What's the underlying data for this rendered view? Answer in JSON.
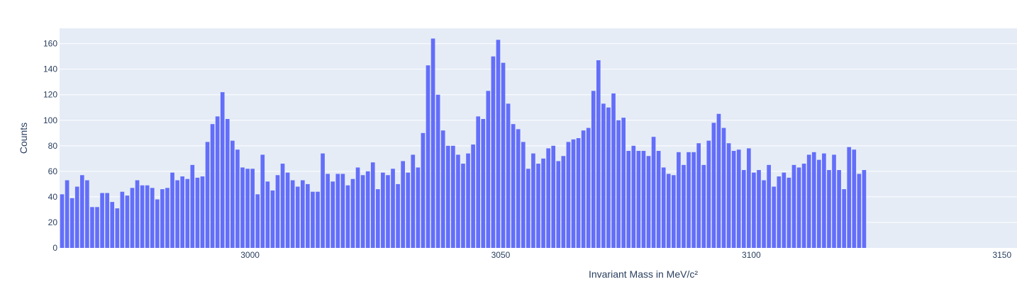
{
  "chart_data": {
    "type": "bar",
    "xlabel": "Invariant Mass in MeV/c²",
    "ylabel": "Counts",
    "xlim": [
      2962,
      3153
    ],
    "ylim": [
      0,
      172
    ],
    "x_start": 2962,
    "bin_width": 1,
    "x_ticks": [
      3000,
      3050,
      3100,
      3150
    ],
    "y_ticks": [
      0,
      20,
      40,
      60,
      80,
      100,
      120,
      140,
      160
    ],
    "grid": true,
    "bar_color": "#636efa",
    "plot_bg": "#e5ecf6",
    "values": [
      42,
      53,
      39,
      48,
      57,
      53,
      32,
      32,
      43,
      43,
      36,
      31,
      44,
      41,
      47,
      53,
      49,
      49,
      47,
      38,
      46,
      47,
      59,
      53,
      56,
      54,
      65,
      55,
      56,
      83,
      97,
      103,
      122,
      101,
      84,
      77,
      63,
      62,
      62,
      42,
      73,
      52,
      45,
      57,
      66,
      59,
      53,
      48,
      53,
      50,
      44,
      44,
      74,
      58,
      52,
      58,
      58,
      49,
      54,
      63,
      57,
      60,
      67,
      46,
      59,
      57,
      62,
      50,
      68,
      59,
      73,
      63,
      90,
      143,
      164,
      120,
      92,
      80,
      80,
      73,
      66,
      74,
      81,
      103,
      101,
      123,
      150,
      163,
      145,
      113,
      97,
      93,
      83,
      62,
      74,
      66,
      70,
      78,
      80,
      68,
      72,
      83,
      85,
      86,
      92,
      94,
      123,
      147,
      113,
      110,
      121,
      100,
      102,
      76,
      80,
      76,
      76,
      72,
      87,
      76,
      63,
      58,
      57,
      75,
      65,
      75,
      75,
      82,
      65,
      84,
      98,
      105,
      94,
      82,
      76,
      77,
      61,
      78,
      59,
      61,
      53,
      65,
      48,
      56,
      59,
      55,
      65,
      63,
      66,
      73,
      75,
      69,
      74,
      61,
      73,
      61,
      46,
      79,
      77,
      58,
      61
    ]
  }
}
